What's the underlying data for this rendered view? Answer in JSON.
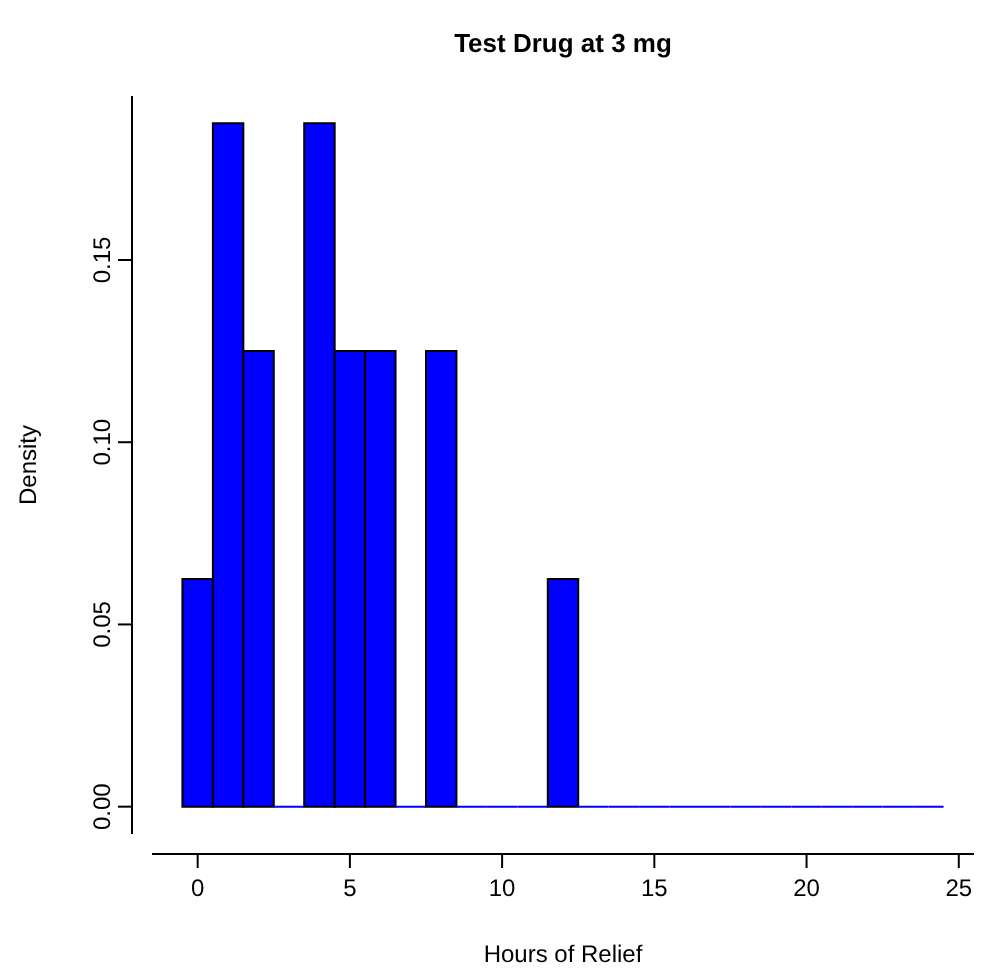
{
  "chart_data": {
    "type": "histogram",
    "title": "Test Drug at 3 mg",
    "xlabel": "Hours of Relief",
    "ylabel": "Density",
    "bins": [
      -0.5,
      0.5,
      1.5,
      2.5,
      3.5,
      4.5,
      5.5,
      6.5,
      7.5,
      8.5,
      9.5,
      10.5,
      11.5,
      12.5,
      13.5,
      14.5,
      15.5,
      16.5,
      17.5,
      18.5,
      19.5,
      20.5,
      21.5,
      22.5,
      23.5,
      24.5
    ],
    "values": [
      0.0625,
      0.1875,
      0.125,
      0,
      0.1875,
      0.125,
      0.125,
      0,
      0.125,
      0,
      0,
      0,
      0.0625,
      0,
      0,
      0,
      0,
      0,
      0,
      0,
      0,
      0,
      0,
      0,
      0
    ],
    "color": "#0000ff",
    "xlim": [
      -1.5,
      25.5
    ],
    "ylim": [
      -0.0075,
      0.195
    ],
    "xticks": [
      0,
      5,
      10,
      15,
      20,
      25
    ],
    "yticks": [
      {
        "value": 0,
        "label": "0.00"
      },
      {
        "value": 0.05,
        "label": "0.05"
      },
      {
        "value": 0.1,
        "label": "0.10"
      },
      {
        "value": 0.15,
        "label": "0.15"
      }
    ],
    "grid": false
  }
}
